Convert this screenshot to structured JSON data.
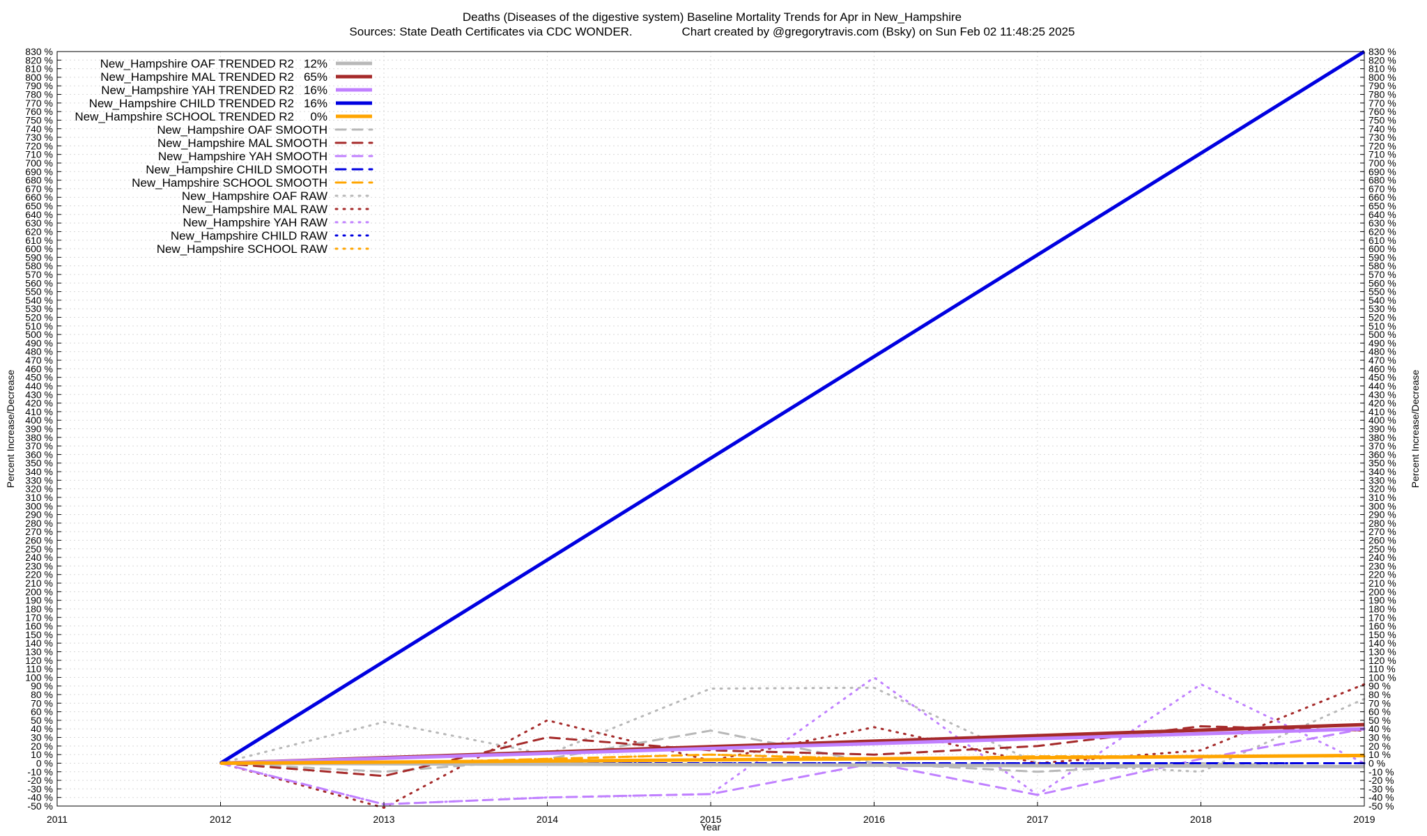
{
  "chart_data": {
    "type": "line",
    "title": "Deaths (Diseases of the digestive system)  Baseline Mortality Trends for Apr in New_Hampshire",
    "subtitle": "Sources: State Death Certificates via CDC WONDER.               Chart created by @gregorytravis.com (Bsky) on Sun Feb 02 11:48:25 2025",
    "xlabel": "Year",
    "ylabel": "Percent Increase/Decrease",
    "ylabel_right": "Percent Increase/Decrease",
    "xlim": [
      2011,
      2019
    ],
    "ylim": [
      -50,
      830
    ],
    "x_ticks": [
      "2011",
      "2012",
      "2013",
      "2014",
      "2015",
      "2016",
      "2017",
      "2018",
      "2019"
    ],
    "y_tick_step": 10,
    "y_tick_suffix": " %",
    "grid": true,
    "legend_position": "top-left",
    "series": [
      {
        "name": "New_Hampshire OAF TRENDED R2",
        "r2": "12%",
        "style": "trend",
        "color": "#b8b8b8",
        "x": [
          2012,
          2019
        ],
        "y": [
          0,
          -4
        ]
      },
      {
        "name": "New_Hampshire MAL TRENDED R2",
        "r2": "65%",
        "style": "trend",
        "color": "#a52a2a",
        "x": [
          2012,
          2019
        ],
        "y": [
          0,
          45
        ]
      },
      {
        "name": "New_Hampshire YAH TRENDED R2",
        "r2": "16%",
        "style": "trend",
        "color": "#c080ff",
        "x": [
          2012,
          2019
        ],
        "y": [
          0,
          40
        ]
      },
      {
        "name": "New_Hampshire CHILD TRENDED R2",
        "r2": "16%",
        "style": "trend",
        "color": "#0000e0",
        "x": [
          2012,
          2019
        ],
        "y": [
          0,
          830
        ]
      },
      {
        "name": "New_Hampshire SCHOOL TRENDED R2",
        "r2": "0%",
        "style": "trend",
        "color": "#ffa500",
        "x": [
          2012,
          2019
        ],
        "y": [
          0,
          9
        ]
      },
      {
        "name": "New_Hampshire OAF SMOOTH",
        "style": "smooth",
        "color": "#b8b8b8",
        "x": [
          2012,
          2013,
          2014,
          2015,
          2016,
          2017,
          2018,
          2019
        ],
        "y": [
          0,
          -10,
          5,
          38,
          0,
          -10,
          0,
          -5
        ]
      },
      {
        "name": "New_Hampshire MAL SMOOTH",
        "style": "smooth",
        "color": "#a52a2a",
        "x": [
          2012,
          2013,
          2014,
          2015,
          2016,
          2017,
          2018,
          2019
        ],
        "y": [
          0,
          -15,
          30,
          15,
          10,
          20,
          43,
          38
        ]
      },
      {
        "name": "New_Hampshire YAH SMOOTH",
        "style": "smooth",
        "color": "#c080ff",
        "x": [
          2012,
          2013,
          2014,
          2015,
          2016,
          2017,
          2018,
          2019
        ],
        "y": [
          0,
          -48,
          -40,
          -36,
          0,
          -37,
          5,
          40
        ]
      },
      {
        "name": "New_Hampshire CHILD SMOOTH",
        "style": "smooth",
        "color": "#0000e0",
        "x": [
          2012,
          2013,
          2014,
          2015,
          2016,
          2017,
          2018,
          2019
        ],
        "y": [
          0,
          0,
          0,
          0,
          0,
          0,
          0,
          0
        ]
      },
      {
        "name": "New_Hampshire SCHOOL SMOOTH",
        "style": "smooth",
        "color": "#ffa500",
        "x": [
          2012,
          2013,
          2014,
          2015,
          2016,
          2017,
          2018,
          2019
        ],
        "y": [
          0,
          0,
          5,
          10,
          5,
          8,
          8,
          8
        ]
      },
      {
        "name": "New_Hampshire OAF RAW",
        "style": "raw",
        "color": "#b8b8b8",
        "x": [
          2012,
          2013,
          2014,
          2015,
          2016,
          2017,
          2018,
          2019
        ],
        "y": [
          0,
          48,
          10,
          87,
          88,
          0,
          -10,
          75
        ]
      },
      {
        "name": "New_Hampshire MAL RAW",
        "style": "raw",
        "color": "#a52a2a",
        "x": [
          2012,
          2013,
          2014,
          2015,
          2016,
          2017,
          2018,
          2019
        ],
        "y": [
          0,
          -52,
          50,
          3,
          42,
          0,
          15,
          92
        ]
      },
      {
        "name": "New_Hampshire YAH RAW",
        "style": "raw",
        "color": "#c080ff",
        "x": [
          2012,
          2013,
          2014,
          2015,
          2016,
          2017,
          2018,
          2019
        ],
        "y": [
          0,
          -48,
          -40,
          -36,
          100,
          -37,
          92,
          0
        ]
      },
      {
        "name": "New_Hampshire CHILD RAW",
        "style": "raw",
        "color": "#0000e0",
        "x": [
          2012,
          2013,
          2014,
          2015,
          2016,
          2017,
          2018,
          2019
        ],
        "y": [
          0,
          0,
          0,
          0,
          0,
          0,
          0,
          0
        ]
      },
      {
        "name": "New_Hampshire SCHOOL RAW",
        "style": "raw",
        "color": "#ffa500",
        "x": [
          2012,
          2013,
          2014,
          2015,
          2016,
          2017,
          2018,
          2019
        ],
        "y": [
          0,
          0,
          5,
          10,
          5,
          8,
          8,
          8
        ]
      }
    ]
  }
}
